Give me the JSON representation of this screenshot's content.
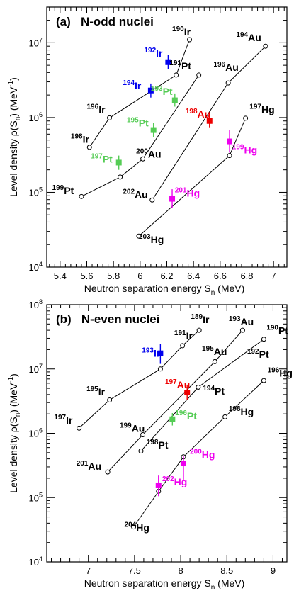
{
  "chart_data": [
    {
      "type": "scatter",
      "panel_label": "(a)",
      "title": "N-odd nuclei",
      "xlabel": "Neutron separation energy S",
      "xlabel_sub": "n",
      "xlabel_unit": " (MeV)",
      "ylabel": "Level density ρ(S",
      "ylabel_sub": "n",
      "ylabel_unit": ") (MeV",
      "ylabel_sup": "-1",
      "ylabel_close": ")",
      "xlim": [
        5.3,
        7.1
      ],
      "ylim": [
        10000,
        30000000
      ],
      "yscale": "log",
      "xticks": [
        "5.4",
        "5.6",
        "5.8",
        "6",
        "6.2",
        "6.4",
        "6.6",
        "6.8",
        "7"
      ],
      "yticks": [
        {
          "value": 10000,
          "base": "10",
          "exp": "4"
        },
        {
          "value": 100000,
          "base": "10",
          "exp": "5"
        },
        {
          "value": 1000000,
          "base": "10",
          "exp": "6"
        },
        {
          "value": 10000000,
          "base": "10",
          "exp": "7"
        }
      ],
      "series": [
        {
          "points": [
            [
              5.62,
              400000
            ],
            [
              5.77,
              990000
            ],
            [
              6.27,
              3700000
            ],
            [
              6.37,
              11000000
            ]
          ]
        },
        {
          "points": [
            [
              5.56,
              88000
            ],
            [
              5.85,
              160000
            ],
            [
              6.02,
              280000
            ],
            [
              6.44,
              3700000
            ]
          ]
        },
        {
          "points": [
            [
              6.09,
              79000
            ],
            [
              6.66,
              2900000
            ],
            [
              6.94,
              9000000
            ]
          ]
        },
        {
          "points": [
            [
              5.99,
              26000
            ],
            [
              6.67,
              310000
            ],
            [
              6.79,
              980000
            ]
          ]
        }
      ],
      "measured": [
        {
          "x": 6.21,
          "y": 5500000,
          "err_lo": 4400000,
          "err_hi": 6900000,
          "color": "#0000ee"
        },
        {
          "x": 6.08,
          "y": 2300000,
          "err_lo": 1850000,
          "err_hi": 2850000,
          "color": "#0000ee"
        },
        {
          "x": 6.26,
          "y": 1700000,
          "err_lo": 1400000,
          "err_hi": 2100000,
          "color": "#55cc55"
        },
        {
          "x": 6.1,
          "y": 680000,
          "err_lo": 550000,
          "err_hi": 850000,
          "color": "#55cc55"
        },
        {
          "x": 5.84,
          "y": 250000,
          "err_lo": 200000,
          "err_hi": 310000,
          "color": "#55cc55"
        },
        {
          "x": 6.52,
          "y": 900000,
          "err_lo": 740000,
          "err_hi": 1100000,
          "color": "#ee0000"
        },
        {
          "x": 6.67,
          "y": 480000,
          "err_lo": 340000,
          "err_hi": 680000,
          "color": "#ee00ee"
        },
        {
          "x": 6.24,
          "y": 82000,
          "err_lo": 62000,
          "err_hi": 110000,
          "color": "#ee00ee"
        }
      ],
      "labels": [
        {
          "mass": "190",
          "el": "Ir",
          "x": 6.24,
          "y": 12500000,
          "color": "#000000"
        },
        {
          "mass": "192",
          "el": "Ir",
          "x": 6.03,
          "y": 6500000,
          "color": "#0000ee"
        },
        {
          "mass": "191",
          "el": "Pt",
          "x": 6.22,
          "y": 4400000,
          "color": "#000000"
        },
        {
          "mass": "194",
          "el": "Ir",
          "x": 5.87,
          "y": 2400000,
          "color": "#0000ee"
        },
        {
          "mass": "193",
          "el": "Pt",
          "x": 6.08,
          "y": 2000000,
          "color": "#55cc55"
        },
        {
          "mass": "196",
          "el": "Ir",
          "x": 5.6,
          "y": 1150000,
          "color": "#000000"
        },
        {
          "mass": "198",
          "el": "Ir",
          "x": 5.48,
          "y": 460000,
          "color": "#000000"
        },
        {
          "mass": "195",
          "el": "Pt",
          "x": 5.9,
          "y": 760000,
          "color": "#55cc55"
        },
        {
          "mass": "197",
          "el": "Pt",
          "x": 5.63,
          "y": 250000,
          "color": "#55cc55"
        },
        {
          "mass": "199",
          "el": "Pt",
          "x": 5.34,
          "y": 95000,
          "color": "#000000"
        },
        {
          "mass": "194",
          "el": "Au",
          "x": 6.72,
          "y": 10500000,
          "color": "#000000"
        },
        {
          "mass": "196",
          "el": "Au",
          "x": 6.55,
          "y": 4200000,
          "color": "#000000"
        },
        {
          "mass": "198",
          "el": "Au",
          "x": 6.34,
          "y": 1000000,
          "color": "#ee0000"
        },
        {
          "mass": "200",
          "el": "Au",
          "x": 5.97,
          "y": 290000,
          "color": "#000000"
        },
        {
          "mass": "202",
          "el": "Au",
          "x": 5.87,
          "y": 84000,
          "color": "#000000"
        },
        {
          "mass": "197",
          "el": "Hg",
          "x": 6.82,
          "y": 1150000,
          "color": "#000000"
        },
        {
          "mass": "199",
          "el": "Hg",
          "x": 6.69,
          "y": 330000,
          "color": "#ee00ee"
        },
        {
          "mass": "201",
          "el": "Hg",
          "x": 6.26,
          "y": 88000,
          "color": "#ee00ee"
        },
        {
          "mass": "203",
          "el": "Hg",
          "x": 5.99,
          "y": 21000,
          "color": "#000000"
        }
      ]
    },
    {
      "type": "scatter",
      "panel_label": "(b)",
      "title": "N-even nuclei",
      "xlabel": "Neutron separation energy S",
      "xlabel_sub": "n",
      "xlabel_unit": " (MeV)",
      "ylabel": "Level density ρ(S",
      "ylabel_sub": "n",
      "ylabel_unit": ") (MeV",
      "ylabel_sup": "-1",
      "ylabel_close": ")",
      "xlim": [
        6.55,
        9.15
      ],
      "ylim": [
        10000,
        100000000
      ],
      "yscale": "log",
      "xticks": [
        "7",
        "7.5",
        "8",
        "8.5",
        "9"
      ],
      "yticks": [
        {
          "value": 10000,
          "base": "10",
          "exp": "4"
        },
        {
          "value": 100000,
          "base": "10",
          "exp": "5"
        },
        {
          "value": 1000000,
          "base": "10",
          "exp": "6"
        },
        {
          "value": 10000000,
          "base": "10",
          "exp": "7"
        },
        {
          "value": 100000000,
          "base": "10",
          "exp": "8"
        }
      ],
      "series": [
        {
          "points": [
            [
              6.9,
              1200000
            ],
            [
              7.23,
              3300000
            ],
            [
              7.78,
              10000000
            ],
            [
              8.02,
              23000000
            ],
            [
              8.2,
              40000000
            ]
          ]
        },
        {
          "points": [
            [
              7.21,
              250000
            ],
            [
              7.59,
              950000
            ],
            [
              8.37,
              13000000
            ],
            [
              8.67,
              40000000
            ]
          ]
        },
        {
          "points": [
            [
              7.57,
              530000
            ],
            [
              8.19,
              5200000
            ],
            [
              8.9,
              29000000
            ]
          ]
        },
        {
          "points": [
            [
              7.49,
              35000
            ],
            [
              7.76,
              125000
            ],
            [
              8.03,
              430000
            ],
            [
              8.48,
              1800000
            ],
            [
              8.9,
              6600000
            ]
          ]
        }
      ],
      "measured": [
        {
          "x": 7.78,
          "y": 17500000,
          "err_lo": 12000000,
          "err_hi": 24500000,
          "color": "#0000ee"
        },
        {
          "x": 8.07,
          "y": 4300000,
          "err_lo": 3300000,
          "err_hi": 5700000,
          "color": "#ee0000"
        },
        {
          "x": 7.91,
          "y": 1650000,
          "err_lo": 1320000,
          "err_hi": 2060000,
          "color": "#55cc55"
        },
        {
          "x": 8.03,
          "y": 340000,
          "err_lo": 190000,
          "err_hi": 450000,
          "color": "#ee00ee"
        },
        {
          "x": 7.76,
          "y": 155000,
          "err_lo": 105000,
          "err_hi": 220000,
          "color": "#ee00ee"
        }
      ],
      "labels": [
        {
          "mass": "189",
          "el": "Ir",
          "x": 8.11,
          "y": 52000000,
          "color": "#000000"
        },
        {
          "mass": "191",
          "el": "Ir",
          "x": 7.93,
          "y": 29000000,
          "color": "#000000"
        },
        {
          "mass": "193",
          "el": "Au",
          "x": 8.52,
          "y": 48000000,
          "color": "#000000"
        },
        {
          "mass": "193",
          "el": "Ir",
          "x": 7.58,
          "y": 15500000,
          "color": "#0000ee"
        },
        {
          "mass": "195",
          "el": "Au",
          "x": 8.23,
          "y": 16500000,
          "color": "#000000"
        },
        {
          "mass": "195",
          "el": "Ir",
          "x": 6.98,
          "y": 3900000,
          "color": "#000000"
        },
        {
          "mass": "197",
          "el": "Ir",
          "x": 6.63,
          "y": 1400000,
          "color": "#000000"
        },
        {
          "mass": "197",
          "el": "Au",
          "x": 7.83,
          "y": 5000000,
          "color": "#ee0000"
        },
        {
          "mass": "194",
          "el": "Pt",
          "x": 8.24,
          "y": 4000000,
          "color": "#000000"
        },
        {
          "mass": "190",
          "el": "Pt",
          "x": 8.93,
          "y": 35000000,
          "color": "#000000"
        },
        {
          "mass": "192",
          "el": "Pt",
          "x": 8.72,
          "y": 15000000,
          "color": "#000000"
        },
        {
          "mass": "196",
          "el": "Hg",
          "x": 8.94,
          "y": 7600000,
          "color": "#000000"
        },
        {
          "mass": "198",
          "el": "Hg",
          "x": 8.52,
          "y": 1900000,
          "color": "#000000"
        },
        {
          "mass": "199",
          "el": "Au",
          "x": 7.34,
          "y": 1050000,
          "color": "#000000"
        },
        {
          "mass": "196",
          "el": "Pt",
          "x": 7.94,
          "y": 1650000,
          "color": "#55cc55"
        },
        {
          "mass": "198",
          "el": "Pt",
          "x": 7.63,
          "y": 580000,
          "color": "#000000"
        },
        {
          "mass": "201",
          "el": "Au",
          "x": 6.87,
          "y": 270000,
          "color": "#000000"
        },
        {
          "mass": "200",
          "el": "Hg",
          "x": 8.1,
          "y": 410000,
          "color": "#ee00ee"
        },
        {
          "mass": "202",
          "el": "Hg",
          "x": 7.8,
          "y": 155000,
          "color": "#ee00ee"
        },
        {
          "mass": "204",
          "el": "Hg",
          "x": 7.39,
          "y": 30000,
          "color": "#000000"
        }
      ]
    }
  ]
}
